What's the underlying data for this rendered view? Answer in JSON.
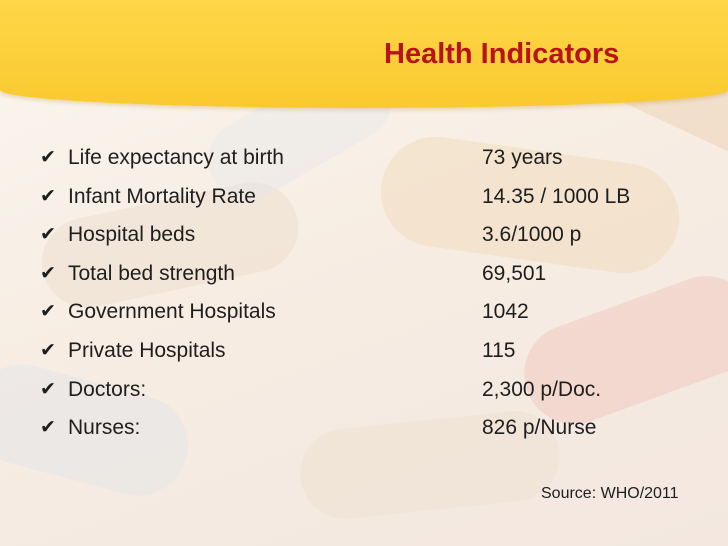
{
  "slide": {
    "title": "Health Indicators",
    "indicators": [
      {
        "label": "Life expectancy at birth",
        "value": "73 years"
      },
      {
        "label": "Infant Mortality Rate",
        "value": "14.35 / 1000 LB"
      },
      {
        "label": "Hospital beds",
        "value": "3.6/1000 p"
      },
      {
        "label": "Total bed strength",
        "value": "69,501"
      },
      {
        "label": "Government Hospitals",
        "value": "1042"
      },
      {
        "label": "Private Hospitals",
        "value": "115"
      },
      {
        "label": "Doctors:",
        "value": "2,300 p/Doc."
      },
      {
        "label": "Nurses:",
        "value": "826 p/Nurse"
      }
    ],
    "source": "Source: WHO/2011",
    "bullet_icon": "checkmark-icon",
    "colors": {
      "title": "#b6141a",
      "banner": "#fcd03a",
      "text": "#1e1e1e"
    }
  }
}
